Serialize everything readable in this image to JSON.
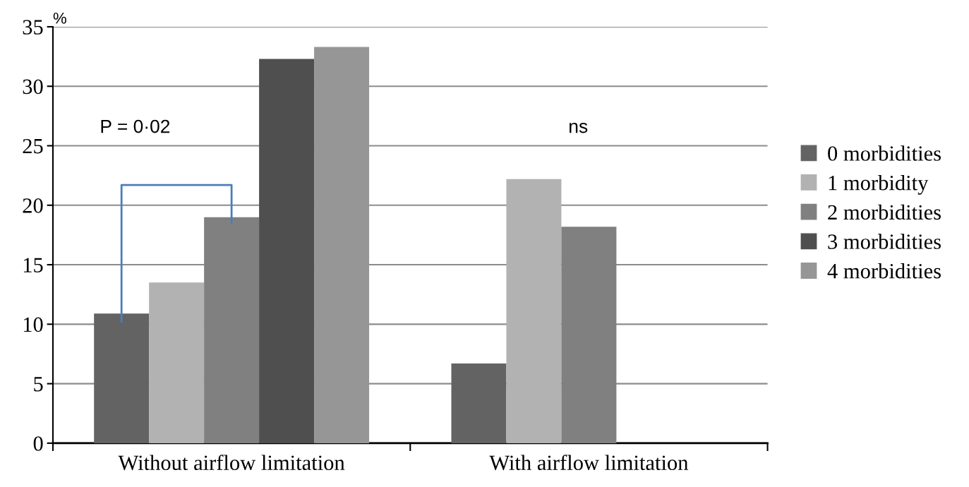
{
  "chart_data": {
    "type": "bar",
    "ylabel": "%",
    "categories": [
      "Without airflow limitation",
      "With airflow limitation"
    ],
    "series": [
      {
        "name": "0 morbidities",
        "color": "#636363",
        "values": [
          10.9,
          6.7
        ]
      },
      {
        "name": "1 morbidity",
        "color": "#b2b2b2",
        "values": [
          13.5,
          22.2
        ]
      },
      {
        "name": "2 morbidities",
        "color": "#808080",
        "values": [
          19.0,
          18.2
        ]
      },
      {
        "name": "3 morbidities",
        "color": "#4f4f4f",
        "values": [
          32.3,
          null
        ]
      },
      {
        "name": "4 morbidities",
        "color": "#969696",
        "values": [
          33.3,
          null
        ]
      }
    ],
    "ylim": [
      0,
      35
    ],
    "yticks": [
      0,
      5,
      10,
      15,
      20,
      25,
      30,
      35
    ],
    "grid": "y",
    "legend": "right",
    "annotations": [
      "P = 0·02",
      "ns"
    ]
  }
}
